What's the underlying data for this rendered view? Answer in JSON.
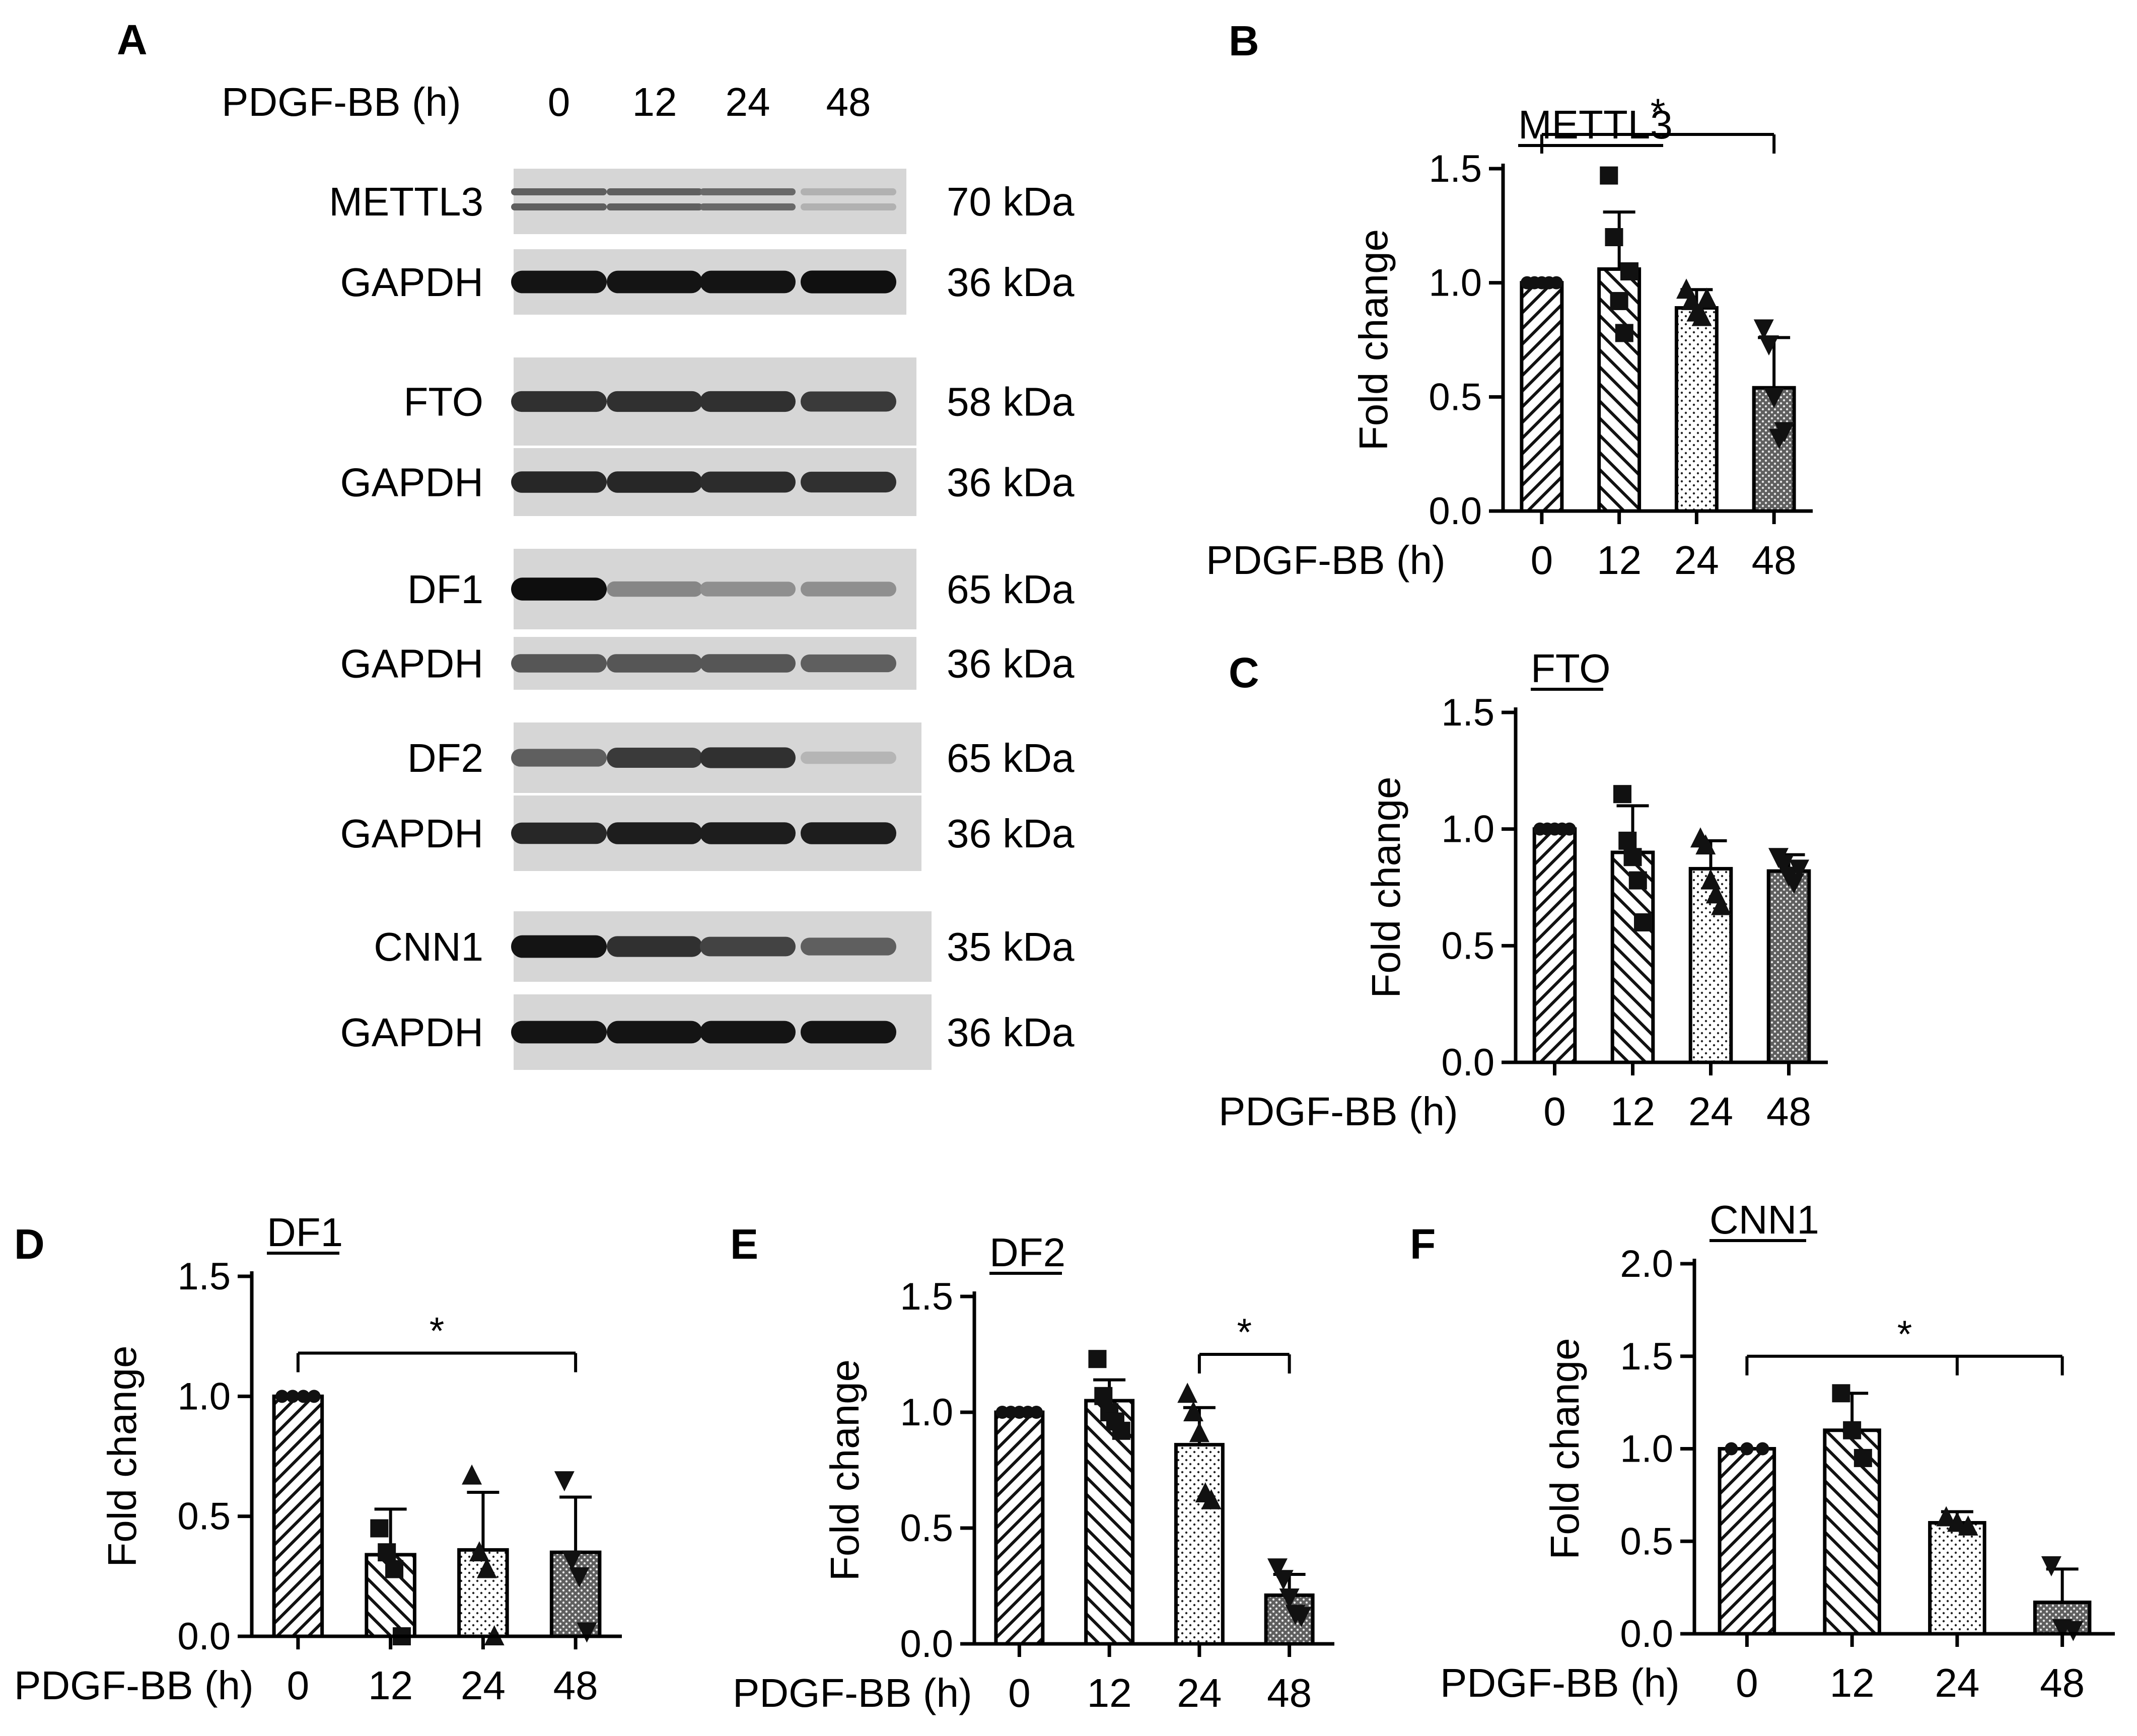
{
  "panel_a": {
    "letter": "A",
    "treatment_label": "PDGF-BB (h)",
    "lanes": [
      "0",
      "12",
      "24",
      "48"
    ],
    "blots": [
      {
        "label": "METTL3",
        "kda": "70 kDa",
        "intensity": [
          0.55,
          0.55,
          0.5,
          0.12
        ],
        "doublet": true
      },
      {
        "label": "GAPDH",
        "kda": "36 kDa",
        "intensity": [
          0.95,
          0.95,
          0.95,
          0.97
        ]
      },
      {
        "label": "FTO",
        "kda": "58 kDa",
        "intensity": [
          0.8,
          0.8,
          0.8,
          0.75
        ]
      },
      {
        "label": "GAPDH",
        "kda": "36 kDa",
        "intensity": [
          0.85,
          0.85,
          0.82,
          0.8
        ]
      },
      {
        "label": "DF1",
        "kda": "65 kDa",
        "intensity": [
          0.98,
          0.35,
          0.3,
          0.3
        ]
      },
      {
        "label": "GAPDH",
        "kda": "36 kDa",
        "intensity": [
          0.6,
          0.6,
          0.6,
          0.55
        ]
      },
      {
        "label": "DF2",
        "kda": "65 kDa",
        "intensity": [
          0.55,
          0.75,
          0.8,
          0.1
        ]
      },
      {
        "label": "GAPDH",
        "kda": "36 kDa",
        "intensity": [
          0.85,
          0.9,
          0.9,
          0.9
        ]
      },
      {
        "label": "CNN1",
        "kda": "35 kDa",
        "intensity": [
          0.95,
          0.8,
          0.7,
          0.55
        ]
      },
      {
        "label": "GAPDH",
        "kda": "36 kDa",
        "intensity": [
          0.95,
          0.95,
          0.95,
          0.95
        ]
      }
    ]
  },
  "chart_data": [
    {
      "letter": "B",
      "type": "bar",
      "title": "METTL3",
      "ylabel": "Fold change",
      "xlabel": "PDGF-BB (h)",
      "categories": [
        "0",
        "12",
        "24",
        "48"
      ],
      "values": [
        1.0,
        1.06,
        0.89,
        0.54
      ],
      "errors": [
        0.0,
        0.25,
        0.08,
        0.22
      ],
      "ylim": [
        0,
        1.5
      ],
      "yticks": [
        "0.0",
        "0.5",
        "1.0",
        "1.5"
      ],
      "points": [
        [
          1,
          1,
          1,
          1,
          1
        ],
        [
          1.47,
          1.2,
          0.92,
          0.78,
          1.05
        ],
        [
          0.97,
          0.92,
          0.87,
          0.85,
          0.93
        ],
        [
          0.8,
          0.73,
          0.5,
          0.32,
          0.35
        ]
      ],
      "markers": [
        "circle",
        "square",
        "triangle",
        "triangle-down"
      ],
      "significance": [
        {
          "from": 0,
          "to": 3,
          "label": "*",
          "y": 1.65
        }
      ]
    },
    {
      "letter": "C",
      "type": "bar",
      "title": "FTO",
      "ylabel": "Fold change",
      "xlabel": "PDGF-BB (h)",
      "categories": [
        "0",
        "12",
        "24",
        "48"
      ],
      "values": [
        1.0,
        0.9,
        0.83,
        0.82
      ],
      "errors": [
        0.0,
        0.2,
        0.12,
        0.07
      ],
      "ylim": [
        0,
        1.5
      ],
      "yticks": [
        "0.0",
        "0.5",
        "1.0",
        "1.5"
      ],
      "points": [
        [
          1,
          1,
          1,
          1,
          1
        ],
        [
          1.15,
          0.95,
          0.88,
          0.78,
          0.6
        ],
        [
          0.96,
          0.93,
          0.78,
          0.72,
          0.67
        ],
        [
          0.88,
          0.85,
          0.8,
          0.77,
          0.83
        ]
      ],
      "markers": [
        "circle",
        "square",
        "triangle",
        "triangle-down"
      ],
      "significance": []
    },
    {
      "letter": "D",
      "type": "bar",
      "title": "DF1",
      "ylabel": "Fold change",
      "xlabel": "PDGF-BB (h)",
      "categories": [
        "0",
        "12",
        "24",
        "48"
      ],
      "values": [
        1.0,
        0.34,
        0.36,
        0.35
      ],
      "errors": [
        0.0,
        0.19,
        0.24,
        0.23
      ],
      "ylim": [
        0,
        1.5
      ],
      "yticks": [
        "0.0",
        "0.5",
        "1.0",
        "1.5"
      ],
      "points": [
        [
          1,
          1,
          1,
          1
        ],
        [
          0.45,
          0.35,
          0.28,
          0.0
        ],
        [
          0.67,
          0.35,
          0.28,
          0.0
        ],
        [
          0.65,
          0.32,
          0.25,
          0.02
        ]
      ],
      "markers": [
        "circle",
        "square",
        "triangle",
        "triangle-down"
      ],
      "significance": [
        {
          "from": 0,
          "to": 3,
          "label": "*",
          "y": 1.18
        }
      ]
    },
    {
      "letter": "E",
      "type": "bar",
      "title": "DF2",
      "ylabel": "Fold change",
      "xlabel": "PDGF-BB (h)",
      "categories": [
        "0",
        "12",
        "24",
        "48"
      ],
      "values": [
        1.0,
        1.05,
        0.86,
        0.21
      ],
      "errors": [
        0.0,
        0.09,
        0.16,
        0.09
      ],
      "ylim": [
        0,
        1.5
      ],
      "yticks": [
        "0.0",
        "0.5",
        "1.0",
        "1.5"
      ],
      "points": [
        [
          1,
          1,
          1,
          1,
          1
        ],
        [
          1.23,
          1.07,
          1.0,
          0.96,
          0.92
        ],
        [
          1.08,
          1.0,
          0.91,
          0.65,
          0.62
        ],
        [
          0.33,
          0.28,
          0.2,
          0.13,
          0.12
        ]
      ],
      "markers": [
        "circle",
        "square",
        "triangle",
        "triangle-down"
      ],
      "significance": [
        {
          "from": 2,
          "to": 3,
          "label": "*",
          "y": 1.25
        }
      ]
    },
    {
      "letter": "F",
      "type": "bar",
      "title": "CNN1",
      "ylabel": "Fold change",
      "xlabel": "PDGF-BB (h)",
      "categories": [
        "0",
        "12",
        "24",
        "48"
      ],
      "values": [
        1.0,
        1.1,
        0.6,
        0.17
      ],
      "errors": [
        0.0,
        0.2,
        0.06,
        0.18
      ],
      "ylim": [
        0,
        2.0
      ],
      "yticks": [
        "0.0",
        "0.5",
        "1.0",
        "1.5",
        "2.0"
      ],
      "points": [
        [
          1,
          1,
          1
        ],
        [
          1.3,
          1.1,
          0.95
        ],
        [
          0.63,
          0.6,
          0.58
        ],
        [
          0.37,
          0.03,
          0.02
        ]
      ],
      "markers": [
        "circle",
        "square",
        "triangle",
        "triangle-down"
      ],
      "significance": [
        {
          "from": 0,
          "to": 3,
          "label": "*",
          "y": 1.5,
          "branch": 2
        }
      ]
    }
  ]
}
